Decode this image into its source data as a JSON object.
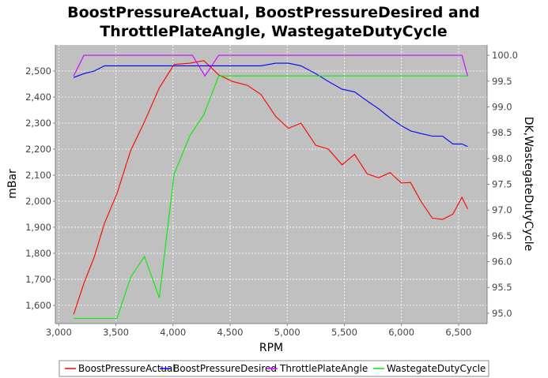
{
  "chart_data": {
    "type": "line",
    "title_lines": [
      "BoostPressureActual, BoostPressureDesired and",
      "ThrottlePlateAngle, WastegateDutyCycle"
    ],
    "xlabel": "RPM",
    "ylabel_left": "mBar",
    "ylabel_right": "DK,WastegateDutyCycle",
    "xlim": [
      2970,
      6750
    ],
    "ylim_left": [
      1530,
      2600
    ],
    "ylim_right": [
      94.8,
      100.2
    ],
    "x_ticks": [
      3000,
      3500,
      4000,
      4500,
      5000,
      5500,
      6000,
      6500
    ],
    "x_tick_labels": [
      "3,000",
      "3,500",
      "4,000",
      "4,500",
      "5,000",
      "5,500",
      "6,000",
      "6,500"
    ],
    "y_left_ticks": [
      1600,
      1700,
      1800,
      1900,
      2000,
      2100,
      2200,
      2300,
      2400,
      2500
    ],
    "y_left_tick_labels": [
      "1,600",
      "1,700",
      "1,800",
      "1,900",
      "2,000",
      "2,100",
      "2,200",
      "2,300",
      "2,400",
      "2,500"
    ],
    "y_right_ticks": [
      95.0,
      95.5,
      96.0,
      96.5,
      97.0,
      97.5,
      98.0,
      98.5,
      99.0,
      99.5,
      100.0
    ],
    "y_right_tick_labels": [
      "95.0",
      "95.5",
      "96.0",
      "96.5",
      "97.0",
      "97.5",
      "98.0",
      "98.5",
      "99.0",
      "99.5",
      "100.0"
    ],
    "grid": true,
    "legend_position": "bottom",
    "colors": {
      "plot_background": "#c0c0c0",
      "grid": "#ffffff"
    },
    "series": [
      {
        "name": "BoostPressureActual",
        "axis": "left",
        "color": "#ff0000",
        "x": [
          3130,
          3220,
          3310,
          3400,
          3510,
          3630,
          3750,
          3880,
          4010,
          4150,
          4270,
          4400,
          4520,
          4650,
          4770,
          4900,
          5010,
          5120,
          5250,
          5360,
          5480,
          5590,
          5700,
          5800,
          5900,
          6000,
          6080,
          6170,
          6270,
          6360,
          6450,
          6530,
          6580
        ],
        "y": [
          1565,
          1685,
          1785,
          1915,
          2030,
          2195,
          2305,
          2435,
          2525,
          2530,
          2540,
          2485,
          2460,
          2445,
          2410,
          2325,
          2280,
          2300,
          2215,
          2200,
          2140,
          2180,
          2105,
          2090,
          2110,
          2070,
          2072,
          2000,
          1935,
          1930,
          1950,
          2015,
          1970
        ]
      },
      {
        "name": "BoostPressureDesired",
        "axis": "left",
        "color": "#0000ff",
        "x": [
          3130,
          3220,
          3310,
          3400,
          3510,
          3630,
          3750,
          3880,
          4010,
          4150,
          4270,
          4400,
          4520,
          4650,
          4770,
          4900,
          5010,
          5120,
          5250,
          5360,
          5480,
          5590,
          5700,
          5800,
          5900,
          6000,
          6080,
          6170,
          6270,
          6360,
          6450,
          6530,
          6580
        ],
        "y": [
          2475,
          2490,
          2500,
          2520,
          2520,
          2520,
          2520,
          2520,
          2520,
          2520,
          2520,
          2520,
          2520,
          2520,
          2520,
          2530,
          2530,
          2520,
          2490,
          2460,
          2430,
          2420,
          2385,
          2355,
          2320,
          2290,
          2270,
          2260,
          2250,
          2250,
          2220,
          2220,
          2210
        ]
      },
      {
        "name": "ThrottlePlateAngle",
        "axis": "right",
        "color": "#cc00ff",
        "x": [
          3130,
          3220,
          4000,
          4170,
          4280,
          4400,
          4520,
          6530,
          6580
        ],
        "y": [
          99.6,
          100.0,
          100.0,
          100.0,
          99.6,
          100.0,
          100.0,
          100.0,
          99.6
        ]
      },
      {
        "name": "WastegateDutyCycle",
        "axis": "right",
        "color": "#00ee00",
        "x": [
          3130,
          3510,
          3630,
          3750,
          3880,
          4010,
          4150,
          4270,
          4400,
          4520,
          6580
        ],
        "y": [
          94.9,
          94.9,
          95.7,
          96.1,
          95.3,
          97.7,
          98.45,
          98.85,
          99.6,
          99.6,
          99.6
        ]
      }
    ]
  }
}
